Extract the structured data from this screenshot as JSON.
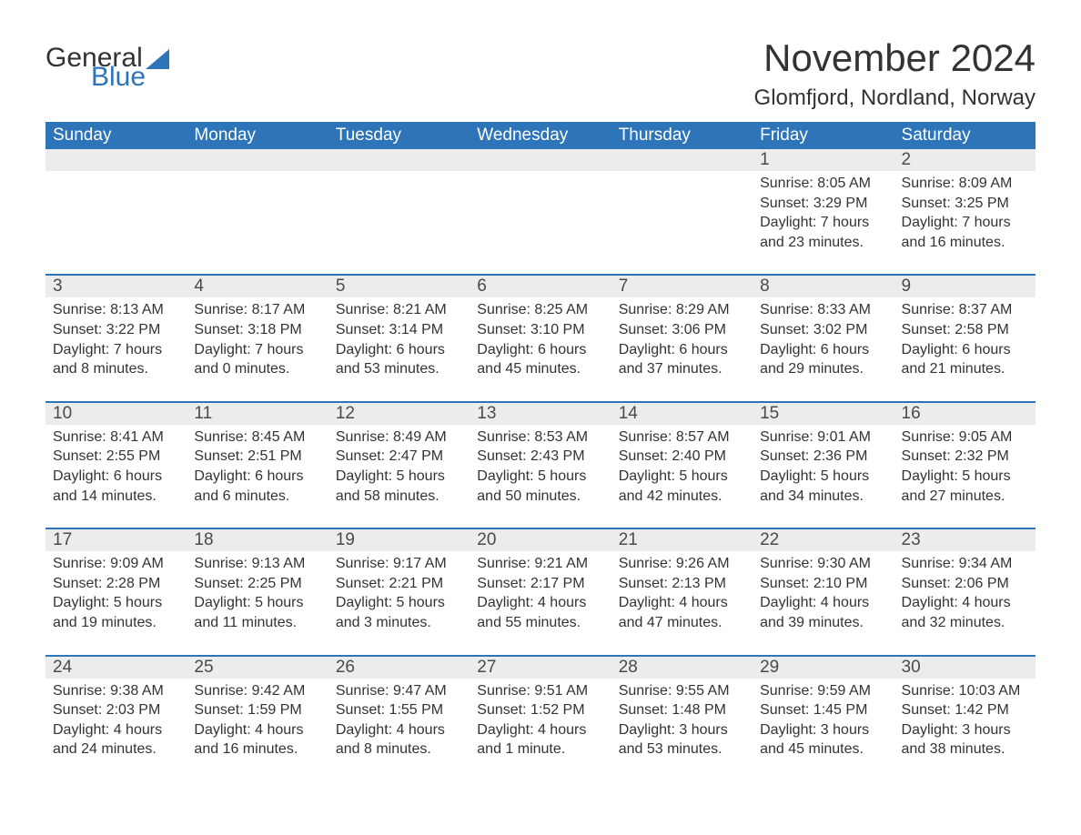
{
  "logo": {
    "word1": "General",
    "word2": "Blue",
    "accent_color": "#2d74b8"
  },
  "title": "November 2024",
  "location": "Glomfjord, Nordland, Norway",
  "colors": {
    "header_bg": "#2d74b8",
    "header_text": "#ffffff",
    "daynum_bg": "#ececec",
    "text": "#333333",
    "page_bg": "#ffffff"
  },
  "day_headers": [
    "Sunday",
    "Monday",
    "Tuesday",
    "Wednesday",
    "Thursday",
    "Friday",
    "Saturday"
  ],
  "weeks": [
    [
      null,
      null,
      null,
      null,
      null,
      {
        "n": "1",
        "sunrise": "Sunrise: 8:05 AM",
        "sunset": "Sunset: 3:29 PM",
        "dl1": "Daylight: 7 hours",
        "dl2": "and 23 minutes."
      },
      {
        "n": "2",
        "sunrise": "Sunrise: 8:09 AM",
        "sunset": "Sunset: 3:25 PM",
        "dl1": "Daylight: 7 hours",
        "dl2": "and 16 minutes."
      }
    ],
    [
      {
        "n": "3",
        "sunrise": "Sunrise: 8:13 AM",
        "sunset": "Sunset: 3:22 PM",
        "dl1": "Daylight: 7 hours",
        "dl2": "and 8 minutes."
      },
      {
        "n": "4",
        "sunrise": "Sunrise: 8:17 AM",
        "sunset": "Sunset: 3:18 PM",
        "dl1": "Daylight: 7 hours",
        "dl2": "and 0 minutes."
      },
      {
        "n": "5",
        "sunrise": "Sunrise: 8:21 AM",
        "sunset": "Sunset: 3:14 PM",
        "dl1": "Daylight: 6 hours",
        "dl2": "and 53 minutes."
      },
      {
        "n": "6",
        "sunrise": "Sunrise: 8:25 AM",
        "sunset": "Sunset: 3:10 PM",
        "dl1": "Daylight: 6 hours",
        "dl2": "and 45 minutes."
      },
      {
        "n": "7",
        "sunrise": "Sunrise: 8:29 AM",
        "sunset": "Sunset: 3:06 PM",
        "dl1": "Daylight: 6 hours",
        "dl2": "and 37 minutes."
      },
      {
        "n": "8",
        "sunrise": "Sunrise: 8:33 AM",
        "sunset": "Sunset: 3:02 PM",
        "dl1": "Daylight: 6 hours",
        "dl2": "and 29 minutes."
      },
      {
        "n": "9",
        "sunrise": "Sunrise: 8:37 AM",
        "sunset": "Sunset: 2:58 PM",
        "dl1": "Daylight: 6 hours",
        "dl2": "and 21 minutes."
      }
    ],
    [
      {
        "n": "10",
        "sunrise": "Sunrise: 8:41 AM",
        "sunset": "Sunset: 2:55 PM",
        "dl1": "Daylight: 6 hours",
        "dl2": "and 14 minutes."
      },
      {
        "n": "11",
        "sunrise": "Sunrise: 8:45 AM",
        "sunset": "Sunset: 2:51 PM",
        "dl1": "Daylight: 6 hours",
        "dl2": "and 6 minutes."
      },
      {
        "n": "12",
        "sunrise": "Sunrise: 8:49 AM",
        "sunset": "Sunset: 2:47 PM",
        "dl1": "Daylight: 5 hours",
        "dl2": "and 58 minutes."
      },
      {
        "n": "13",
        "sunrise": "Sunrise: 8:53 AM",
        "sunset": "Sunset: 2:43 PM",
        "dl1": "Daylight: 5 hours",
        "dl2": "and 50 minutes."
      },
      {
        "n": "14",
        "sunrise": "Sunrise: 8:57 AM",
        "sunset": "Sunset: 2:40 PM",
        "dl1": "Daylight: 5 hours",
        "dl2": "and 42 minutes."
      },
      {
        "n": "15",
        "sunrise": "Sunrise: 9:01 AM",
        "sunset": "Sunset: 2:36 PM",
        "dl1": "Daylight: 5 hours",
        "dl2": "and 34 minutes."
      },
      {
        "n": "16",
        "sunrise": "Sunrise: 9:05 AM",
        "sunset": "Sunset: 2:32 PM",
        "dl1": "Daylight: 5 hours",
        "dl2": "and 27 minutes."
      }
    ],
    [
      {
        "n": "17",
        "sunrise": "Sunrise: 9:09 AM",
        "sunset": "Sunset: 2:28 PM",
        "dl1": "Daylight: 5 hours",
        "dl2": "and 19 minutes."
      },
      {
        "n": "18",
        "sunrise": "Sunrise: 9:13 AM",
        "sunset": "Sunset: 2:25 PM",
        "dl1": "Daylight: 5 hours",
        "dl2": "and 11 minutes."
      },
      {
        "n": "19",
        "sunrise": "Sunrise: 9:17 AM",
        "sunset": "Sunset: 2:21 PM",
        "dl1": "Daylight: 5 hours",
        "dl2": "and 3 minutes."
      },
      {
        "n": "20",
        "sunrise": "Sunrise: 9:21 AM",
        "sunset": "Sunset: 2:17 PM",
        "dl1": "Daylight: 4 hours",
        "dl2": "and 55 minutes."
      },
      {
        "n": "21",
        "sunrise": "Sunrise: 9:26 AM",
        "sunset": "Sunset: 2:13 PM",
        "dl1": "Daylight: 4 hours",
        "dl2": "and 47 minutes."
      },
      {
        "n": "22",
        "sunrise": "Sunrise: 9:30 AM",
        "sunset": "Sunset: 2:10 PM",
        "dl1": "Daylight: 4 hours",
        "dl2": "and 39 minutes."
      },
      {
        "n": "23",
        "sunrise": "Sunrise: 9:34 AM",
        "sunset": "Sunset: 2:06 PM",
        "dl1": "Daylight: 4 hours",
        "dl2": "and 32 minutes."
      }
    ],
    [
      {
        "n": "24",
        "sunrise": "Sunrise: 9:38 AM",
        "sunset": "Sunset: 2:03 PM",
        "dl1": "Daylight: 4 hours",
        "dl2": "and 24 minutes."
      },
      {
        "n": "25",
        "sunrise": "Sunrise: 9:42 AM",
        "sunset": "Sunset: 1:59 PM",
        "dl1": "Daylight: 4 hours",
        "dl2": "and 16 minutes."
      },
      {
        "n": "26",
        "sunrise": "Sunrise: 9:47 AM",
        "sunset": "Sunset: 1:55 PM",
        "dl1": "Daylight: 4 hours",
        "dl2": "and 8 minutes."
      },
      {
        "n": "27",
        "sunrise": "Sunrise: 9:51 AM",
        "sunset": "Sunset: 1:52 PM",
        "dl1": "Daylight: 4 hours",
        "dl2": "and 1 minute."
      },
      {
        "n": "28",
        "sunrise": "Sunrise: 9:55 AM",
        "sunset": "Sunset: 1:48 PM",
        "dl1": "Daylight: 3 hours",
        "dl2": "and 53 minutes."
      },
      {
        "n": "29",
        "sunrise": "Sunrise: 9:59 AM",
        "sunset": "Sunset: 1:45 PM",
        "dl1": "Daylight: 3 hours",
        "dl2": "and 45 minutes."
      },
      {
        "n": "30",
        "sunrise": "Sunrise: 10:03 AM",
        "sunset": "Sunset: 1:42 PM",
        "dl1": "Daylight: 3 hours",
        "dl2": "and 38 minutes."
      }
    ]
  ]
}
